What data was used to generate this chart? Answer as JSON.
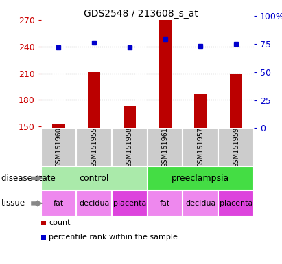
{
  "title": "GDS2548 / 213608_s_at",
  "samples": [
    "GSM151960",
    "GSM151955",
    "GSM151958",
    "GSM151961",
    "GSM151957",
    "GSM151959"
  ],
  "count_values": [
    152,
    212,
    173,
    270,
    187,
    210
  ],
  "percentile_values": [
    72,
    76,
    72,
    79,
    73,
    75
  ],
  "ylim_left": [
    148,
    275
  ],
  "ylim_right": [
    0,
    100
  ],
  "yticks_left": [
    150,
    180,
    210,
    240,
    270
  ],
  "yticks_right": [
    0,
    25,
    50,
    75,
    100
  ],
  "bar_color": "#bb0000",
  "dot_color": "#0000cc",
  "disease_state": [
    {
      "label": "control",
      "span": [
        0,
        3
      ],
      "color": "#aaeaaa"
    },
    {
      "label": "preeclampsia",
      "span": [
        3,
        6
      ],
      "color": "#44dd44"
    }
  ],
  "tissue": [
    {
      "label": "fat",
      "span": [
        0,
        1
      ],
      "color": "#ee88ee"
    },
    {
      "label": "decidua",
      "span": [
        1,
        2
      ],
      "color": "#ee88ee"
    },
    {
      "label": "placenta",
      "span": [
        2,
        3
      ],
      "color": "#dd44dd"
    },
    {
      "label": "fat",
      "span": [
        3,
        4
      ],
      "color": "#ee88ee"
    },
    {
      "label": "decidua",
      "span": [
        4,
        5
      ],
      "color": "#ee88ee"
    },
    {
      "label": "placenta",
      "span": [
        5,
        6
      ],
      "color": "#dd44dd"
    }
  ],
  "left_axis_color": "#cc0000",
  "right_axis_color": "#0000cc",
  "grid_color": "#000000",
  "sample_box_color": "#cccccc",
  "label_disease": "disease state",
  "label_tissue": "tissue",
  "legend_count": "count",
  "legend_percentile": "percentile rank within the sample",
  "bg_color": "#ffffff"
}
